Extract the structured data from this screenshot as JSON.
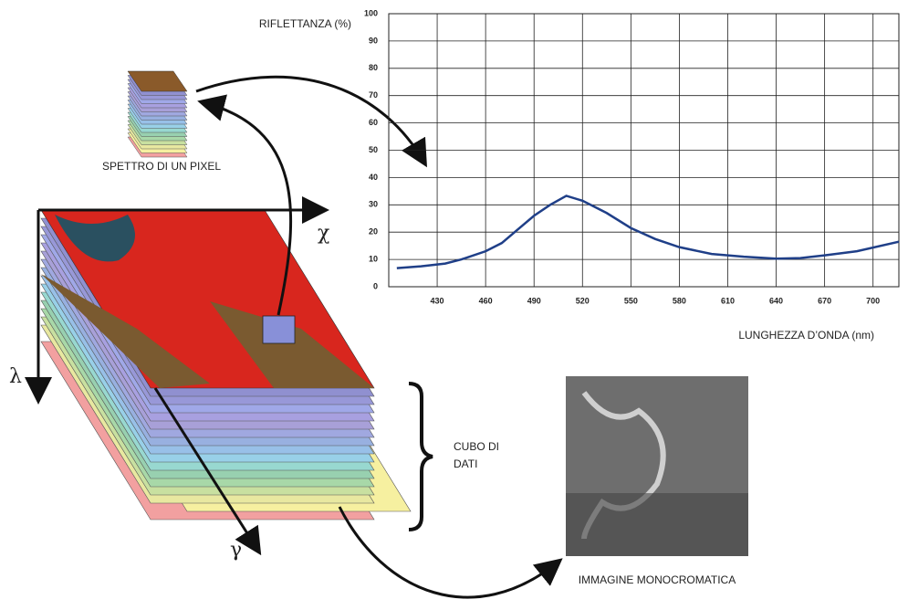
{
  "chart_data": {
    "type": "line",
    "y_label": "RIFLETTANZA (%)",
    "x_label": "LUNGHEZZA D’ONDA (nm)",
    "x": [
      405,
      420,
      435,
      445,
      460,
      470,
      480,
      490,
      500,
      510,
      520,
      535,
      550,
      565,
      580,
      600,
      620,
      640,
      655,
      670,
      690,
      716
    ],
    "values": [
      6.8,
      7.5,
      8.5,
      10,
      13,
      16,
      21,
      26,
      30,
      33.3,
      31.5,
      27,
      21.5,
      17.5,
      14.5,
      12,
      11,
      10.3,
      10.5,
      11.5,
      13,
      16.5
    ],
    "color": "#1f3f88",
    "xlim": [
      400,
      716
    ],
    "ylim": [
      0,
      100
    ],
    "xticks": [
      430,
      460,
      490,
      520,
      550,
      580,
      610,
      640,
      670,
      700
    ],
    "yticks": [
      0,
      10,
      20,
      30,
      40,
      50,
      60,
      70,
      80,
      90,
      100
    ],
    "grid": true
  },
  "labels": {
    "pixel_spectrum": "SPETTRO DI UN PIXEL",
    "axis_x": "χ",
    "axis_lambda": "λ",
    "axis_gamma": "γ",
    "cube_line1": "CUBO DI",
    "cube_line2": "DATI",
    "mono_image": "IMMAGINE MONOCROMATICA"
  }
}
